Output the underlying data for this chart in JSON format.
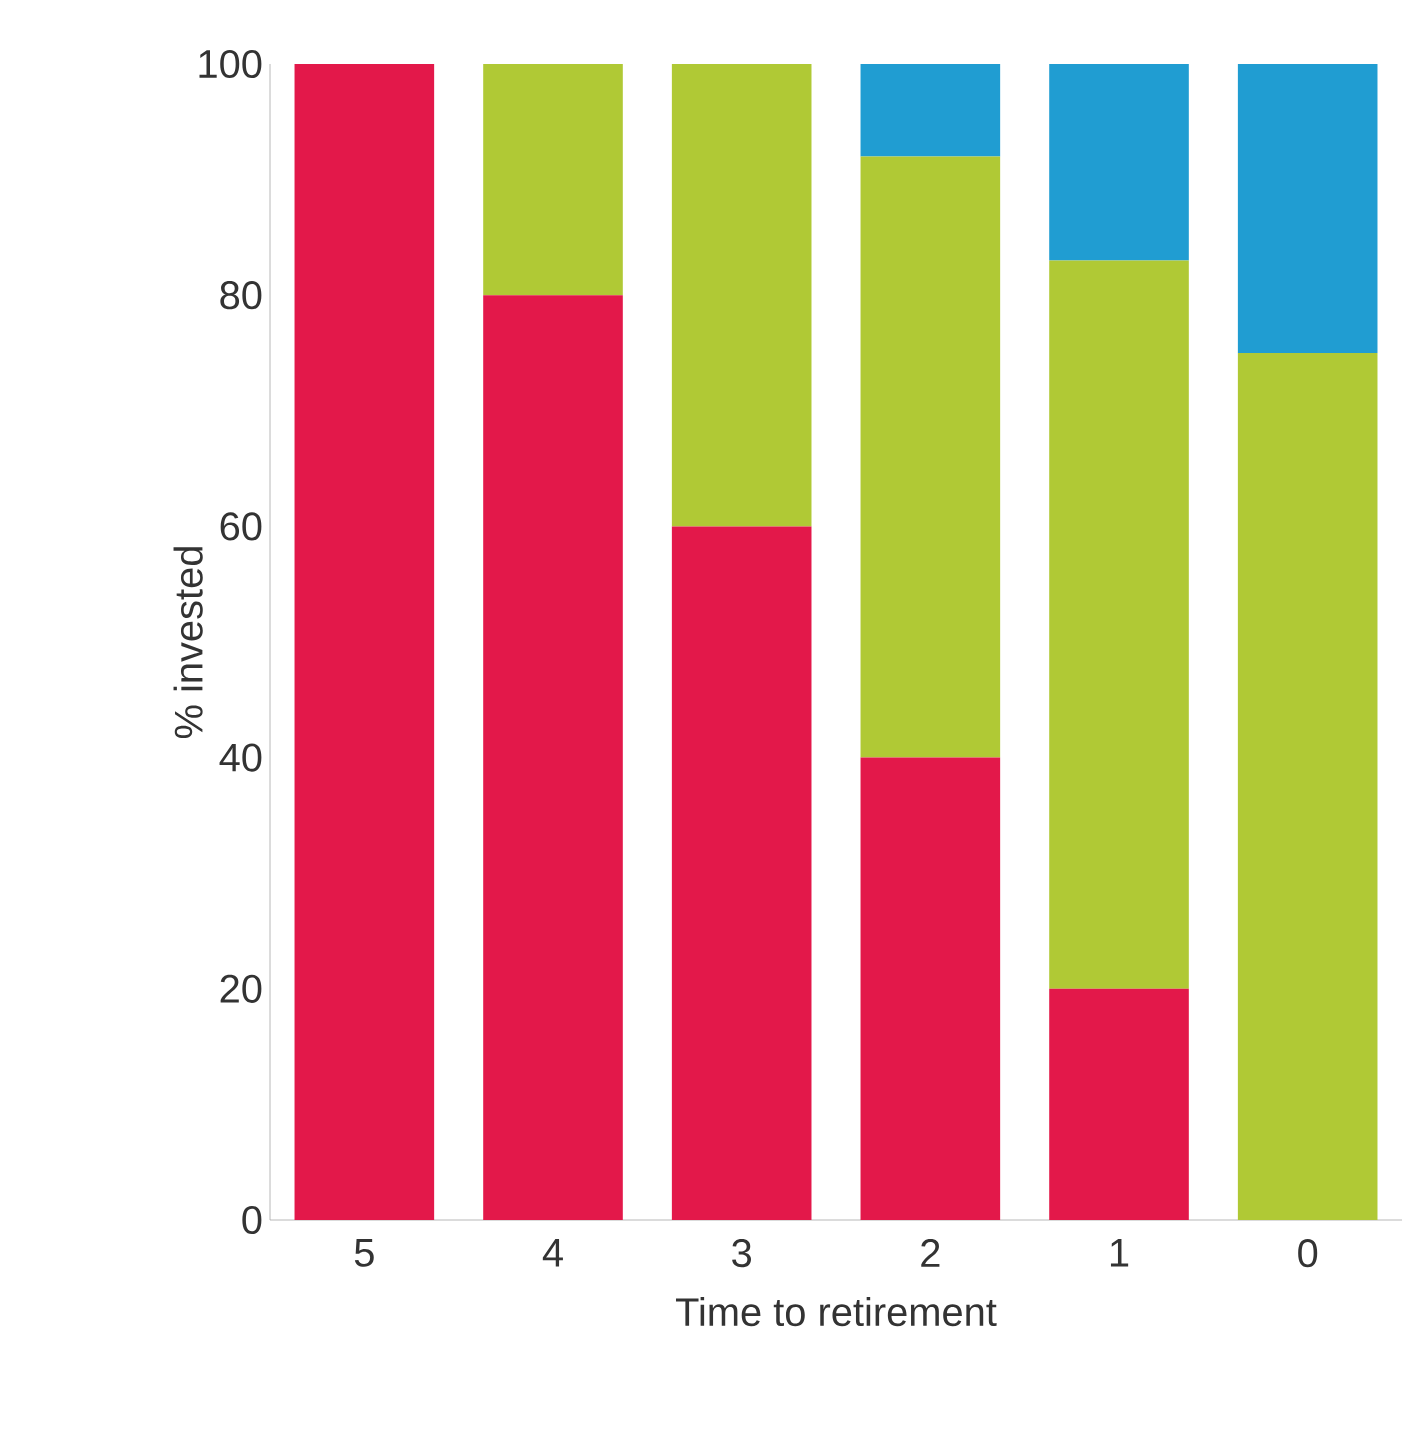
{
  "chart_data": {
    "type": "bar",
    "stacked": true,
    "xlabel": "Time to retirement",
    "ylabel": "% invested",
    "categories": [
      "5",
      "4",
      "3",
      "2",
      "1",
      "0"
    ],
    "series": [
      {
        "color": "#e3184a",
        "values": [
          100,
          80,
          60,
          40,
          20,
          0
        ]
      },
      {
        "color": "#b0c935",
        "values": [
          0,
          20,
          40,
          52,
          63,
          75
        ]
      },
      {
        "color": "#209dd2",
        "values": [
          0,
          0,
          0,
          8,
          17,
          25
        ]
      }
    ],
    "ylim": [
      0,
      100
    ],
    "yticks": [
      0,
      20,
      40,
      60,
      80,
      100
    ],
    "grid": false
  }
}
